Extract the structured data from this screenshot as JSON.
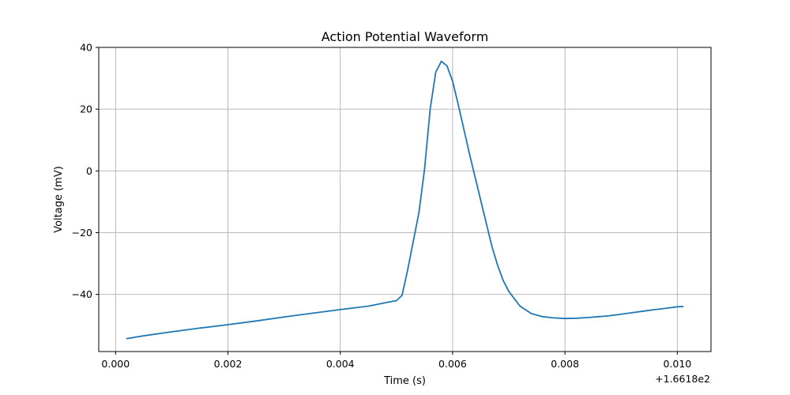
{
  "chart_data": {
    "type": "line",
    "title": "Action Potential Waveform",
    "xlabel": "Time (s)",
    "ylabel": "Voltage (mV)",
    "x_offset_label": "+1.6618e2",
    "xlim": [
      -0.0003,
      0.0106
    ],
    "ylim": [
      -58.5,
      40
    ],
    "grid": true,
    "line_color": "#1f77b4",
    "x_ticks": [
      {
        "value": 0.0,
        "label": "0.000"
      },
      {
        "value": 0.002,
        "label": "0.002"
      },
      {
        "value": 0.004,
        "label": "0.004"
      },
      {
        "value": 0.006,
        "label": "0.006"
      },
      {
        "value": 0.008,
        "label": "0.008"
      },
      {
        "value": 0.01,
        "label": "0.010"
      }
    ],
    "y_ticks": [
      {
        "value": -40,
        "label": "−40"
      },
      {
        "value": -20,
        "label": "−20"
      },
      {
        "value": 0,
        "label": "0"
      },
      {
        "value": 20,
        "label": "20"
      },
      {
        "value": 40,
        "label": "40"
      }
    ],
    "series": [
      {
        "x": [
          0.0002,
          0.0005,
          0.001,
          0.0015,
          0.002,
          0.0025,
          0.003,
          0.0035,
          0.004,
          0.0045,
          0.0048,
          0.005,
          0.0051,
          0.0052,
          0.0054,
          0.0055,
          0.0056,
          0.0057,
          0.0058,
          0.0059,
          0.006,
          0.0061,
          0.0062,
          0.0063,
          0.0064,
          0.0065,
          0.0066,
          0.0067,
          0.0068,
          0.0069,
          0.007,
          0.0072,
          0.0074,
          0.0076,
          0.0078,
          0.008,
          0.0082,
          0.0084,
          0.0086,
          0.0088,
          0.009,
          0.0092,
          0.0094,
          0.0096,
          0.0098,
          0.01,
          0.0101
        ],
        "y": [
          -54.3,
          -53.4,
          -52.1,
          -50.9,
          -49.8,
          -48.6,
          -47.3,
          -46.1,
          -44.9,
          -43.8,
          -42.7,
          -42.0,
          -40.3,
          -32.0,
          -13.5,
          0.5,
          20.0,
          32.0,
          35.5,
          34.0,
          29.0,
          21.5,
          13.5,
          5.5,
          -2.0,
          -9.5,
          -17.0,
          -24.5,
          -30.5,
          -35.5,
          -39.0,
          -43.8,
          -46.2,
          -47.2,
          -47.6,
          -47.8,
          -47.7,
          -47.5,
          -47.2,
          -46.9,
          -46.4,
          -45.9,
          -45.4,
          -44.9,
          -44.5,
          -44.0,
          -43.9
        ]
      }
    ]
  }
}
